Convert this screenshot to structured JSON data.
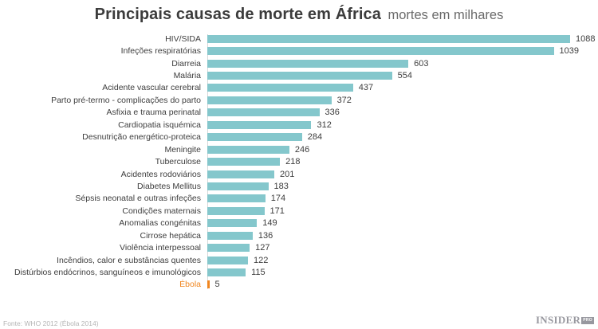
{
  "header": {
    "title": "Principais causas de morte em África",
    "subtitle": "mortes em milhares"
  },
  "chart_data": {
    "type": "bar",
    "orientation": "horizontal",
    "title": "Principais causas de morte em África",
    "subtitle": "mortes em milhares",
    "unit": "milhares de mortes",
    "categories": [
      "HIV/SIDA",
      "Infeções respiratórias",
      "Diarreia",
      "Malária",
      "Acidente vascular cerebral",
      "Parto pré-termo - complicações do parto",
      "Asfixia e trauma perinatal",
      "Cardiopatia isquémica",
      "Desnutrição energético-proteica",
      "Meningite",
      "Tuberculose",
      "Acidentes rodoviários",
      "Diabetes Mellitus",
      "Sépsis neonatal e outras infeções",
      "Condições maternais",
      "Anomalias congénitas",
      "Cirrose hepática",
      "Violência interpessoal",
      "Incêndios, calor e substâncias quentes",
      "Distúrbios endócrinos, sanguíneos e imunológicos",
      "Ébola"
    ],
    "values": [
      1088,
      1039,
      603,
      554,
      437,
      372,
      336,
      312,
      284,
      246,
      218,
      201,
      183,
      174,
      171,
      149,
      136,
      127,
      122,
      115,
      5
    ],
    "highlight_category": "Ébola",
    "value_labels_shown": true,
    "legend": "none",
    "grid": "none",
    "xlim": [
      0,
      1100
    ],
    "colors": {
      "bar": "#84c7cc",
      "highlight": "#f0861f",
      "value_text": "#3c3c3c",
      "label_text": "#3d3d3d",
      "axis_line": "#d8d8d8"
    }
  },
  "footer": {
    "source": "Fonte: WHO 2012 (Ébola 2014)",
    "logo": "INSIDER",
    "logo_badge": "PRO"
  }
}
